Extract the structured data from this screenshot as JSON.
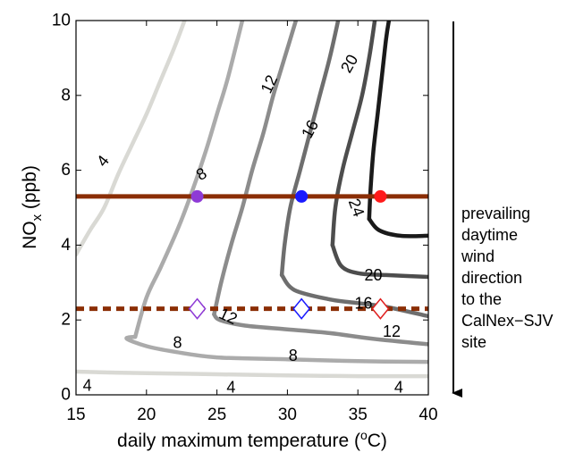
{
  "chart_data": {
    "type": "contour",
    "xlabel_main": "daily maximum temperature (",
    "xlabel_sup": "o",
    "xlabel_end": "C)",
    "ylabel_main": "NO",
    "ylabel_sub": "x",
    "ylabel_end": " (ppb)",
    "xlim": [
      15,
      40
    ],
    "ylim": [
      0,
      10
    ],
    "x_ticks": [
      15,
      20,
      25,
      30,
      35,
      40
    ],
    "y_ticks": [
      0,
      2,
      4,
      6,
      8,
      10
    ],
    "x_tick_labels": [
      "15",
      "20",
      "25",
      "30",
      "35",
      "40"
    ],
    "y_tick_labels": [
      "0",
      "2",
      "4",
      "6",
      "8",
      "10"
    ],
    "grid": false,
    "contours": [
      {
        "level": 4,
        "color": "#d9d9d4",
        "points": [
          [
            15,
            3.75
          ],
          [
            16,
            4.4
          ],
          [
            17,
            5.0
          ],
          [
            18,
            5.9
          ],
          [
            19,
            6.7
          ],
          [
            20,
            7.5
          ],
          [
            21,
            8.4
          ],
          [
            22,
            9.3
          ],
          [
            22.7,
            10
          ]
        ]
      },
      {
        "level": 4,
        "color": "#d9d9d4",
        "points": [
          [
            15,
            0.62
          ],
          [
            17,
            0.6
          ],
          [
            20,
            0.58
          ],
          [
            25,
            0.55
          ],
          [
            30,
            0.52
          ],
          [
            35,
            0.5
          ],
          [
            40,
            0.5
          ]
        ]
      },
      {
        "level": 8,
        "color": "#ababab",
        "points": [
          [
            19.2,
            1.55
          ],
          [
            20,
            2.6
          ],
          [
            21,
            3.4
          ],
          [
            22.3,
            4.5
          ],
          [
            23.3,
            5.5
          ],
          [
            24.2,
            6.5
          ],
          [
            25,
            7.5
          ],
          [
            25.8,
            8.5
          ],
          [
            26.8,
            10
          ]
        ]
      },
      {
        "level": 8,
        "color": "#ababab",
        "points": [
          [
            19.2,
            1.55
          ],
          [
            18.6,
            1.5
          ],
          [
            20,
            1.3
          ],
          [
            22,
            1.15
          ],
          [
            25,
            1.0
          ],
          [
            30,
            0.95
          ],
          [
            35,
            0.9
          ],
          [
            40,
            0.88
          ]
        ]
      },
      {
        "level": 12,
        "color": "#8c8c8c",
        "points": [
          [
            24.8,
            2.15
          ],
          [
            25.3,
            3.0
          ],
          [
            26.0,
            4.0
          ],
          [
            26.8,
            5.0
          ],
          [
            27.5,
            6.0
          ],
          [
            28.3,
            7.0
          ],
          [
            29.0,
            8.0
          ],
          [
            29.8,
            9.0
          ],
          [
            30.6,
            10
          ]
        ]
      },
      {
        "level": 12,
        "color": "#8c8c8c",
        "points": [
          [
            24.8,
            2.15
          ],
          [
            25.2,
            2.0
          ],
          [
            27,
            1.85
          ],
          [
            30,
            1.75
          ],
          [
            33,
            1.65
          ],
          [
            36,
            1.5
          ],
          [
            40,
            1.35
          ]
        ]
      },
      {
        "level": 16,
        "color": "#6e6e6e",
        "points": [
          [
            29.6,
            3.2
          ],
          [
            29.8,
            4.0
          ],
          [
            30.2,
            5.0
          ],
          [
            30.9,
            6.0
          ],
          [
            31.6,
            7.0
          ],
          [
            32.3,
            8.0
          ],
          [
            33.0,
            9.0
          ],
          [
            33.6,
            10
          ]
        ]
      },
      {
        "level": 16,
        "color": "#6e6e6e",
        "points": [
          [
            29.6,
            3.2
          ],
          [
            30.5,
            2.8
          ],
          [
            33,
            2.55
          ],
          [
            35,
            2.45
          ],
          [
            37,
            2.35
          ],
          [
            40,
            2.1
          ]
        ]
      },
      {
        "level": 20,
        "color": "#4d4d4d",
        "points": [
          [
            33.2,
            4.0
          ],
          [
            33.4,
            5.0
          ],
          [
            33.9,
            6.0
          ],
          [
            34.6,
            7.0
          ],
          [
            35.3,
            8.0
          ],
          [
            35.8,
            9.0
          ],
          [
            36.2,
            10
          ]
        ]
      },
      {
        "level": 20,
        "color": "#4d4d4d",
        "points": [
          [
            33.2,
            4.0
          ],
          [
            33.8,
            3.45
          ],
          [
            35,
            3.25
          ],
          [
            37,
            3.2
          ],
          [
            40,
            3.15
          ]
        ]
      },
      {
        "level": 24,
        "color": "#1a1a1a",
        "points": [
          [
            35.8,
            4.7
          ],
          [
            35.9,
            5.5
          ],
          [
            36.1,
            6.5
          ],
          [
            36.4,
            7.5
          ],
          [
            36.7,
            8.5
          ],
          [
            37.0,
            9.5
          ],
          [
            37.2,
            10
          ]
        ]
      },
      {
        "level": 24,
        "color": "#1a1a1a",
        "points": [
          [
            35.8,
            4.7
          ],
          [
            36.5,
            4.4
          ],
          [
            38,
            4.25
          ],
          [
            40,
            4.25
          ]
        ]
      }
    ],
    "contour_labels": [
      {
        "text": "4",
        "x": 16.9,
        "y": 6.25,
        "angle": -52
      },
      {
        "text": "4",
        "x": 15.8,
        "y": 0.25,
        "angle": 0
      },
      {
        "text": "4",
        "x": 26.0,
        "y": 0.2,
        "angle": 0
      },
      {
        "text": "4",
        "x": 37.9,
        "y": 0.2,
        "angle": 0
      },
      {
        "text": "8",
        "x": 23.9,
        "y": 5.9,
        "angle": -30
      },
      {
        "text": "8",
        "x": 22.2,
        "y": 1.4,
        "angle": 0
      },
      {
        "text": "8",
        "x": 30.4,
        "y": 1.05,
        "angle": 0
      },
      {
        "text": "12",
        "x": 28.7,
        "y": 8.3,
        "angle": -65
      },
      {
        "text": "12",
        "x": 25.8,
        "y": 2.1,
        "angle": 25
      },
      {
        "text": "12",
        "x": 37.4,
        "y": 1.7,
        "angle": 0
      },
      {
        "text": "16",
        "x": 31.6,
        "y": 7.1,
        "angle": -62
      },
      {
        "text": "16",
        "x": 35.4,
        "y": 2.45,
        "angle": 0
      },
      {
        "text": "20",
        "x": 34.4,
        "y": 8.85,
        "angle": -60
      },
      {
        "text": "20",
        "x": 36.1,
        "y": 3.2,
        "angle": 0
      },
      {
        "text": "24",
        "x": 34.9,
        "y": 5.0,
        "angle": 70
      }
    ],
    "horizontal_lines": [
      {
        "y": 5.3,
        "style": "solid",
        "color": "#8b2e05"
      },
      {
        "y": 2.3,
        "style": "dashed",
        "color": "#8b2e05"
      }
    ],
    "markers": [
      {
        "shape": "circle",
        "x": 23.6,
        "y": 5.3,
        "color": "#8e3ad6"
      },
      {
        "shape": "circle",
        "x": 31.0,
        "y": 5.3,
        "color": "#1a1aff"
      },
      {
        "shape": "circle",
        "x": 36.6,
        "y": 5.3,
        "color": "#ff1a1a"
      },
      {
        "shape": "diamond",
        "x": 23.6,
        "y": 2.3,
        "color": "#8e3ad6"
      },
      {
        "shape": "diamond",
        "x": 31.0,
        "y": 2.3,
        "color": "#1a1aff"
      },
      {
        "shape": "diamond",
        "x": 36.6,
        "y": 2.3,
        "color": "#e02020"
      }
    ],
    "annotation": [
      "prevailing",
      "daytime",
      "wind",
      "direction",
      "to the",
      "CalNex−SJV",
      "site"
    ]
  }
}
